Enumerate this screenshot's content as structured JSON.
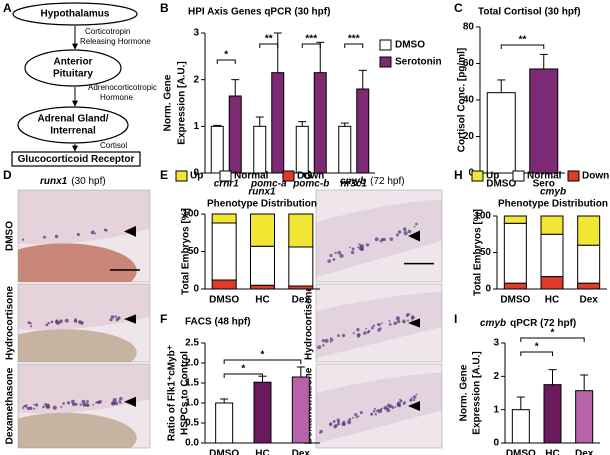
{
  "panel_labels": [
    "A",
    "B",
    "C",
    "D",
    "E",
    "F",
    "G",
    "H",
    "I"
  ],
  "diagram": {
    "nodes": [
      [
        "Hypothalamus"
      ],
      [
        "Anterior",
        "Pituitary"
      ],
      [
        "Adrenal Gland/",
        "Interrenal"
      ],
      [
        "Glucocorticoid Receptor"
      ]
    ],
    "edges": [
      [
        "Corticotropin",
        "Releasing Hormone"
      ],
      [
        "Adrenocorticotropic",
        "Hormone"
      ],
      [
        "Cortisol"
      ]
    ]
  },
  "image_panels": [
    {
      "gene": "runx1",
      "stage": "(30 hpf)",
      "rows": [
        "DMSO",
        "Hydrocortisone",
        "Dexamethasone"
      ]
    },
    {
      "gene": "cmyb",
      "stage": "(72 hpf)",
      "rows": [
        "DMSO",
        "Hydrocortisone",
        "Dexamethasone"
      ]
    }
  ],
  "chart_data": [
    {
      "type": "bar",
      "title": "HPI Axis Genes qPCR (30 hpf)",
      "ylabel": [
        "Norm. Gene",
        "Expression [A.U.]"
      ],
      "categories": [
        "crhr1",
        "pomc-a",
        "pomc-b",
        "nr3c1"
      ],
      "series": [
        {
          "name": "DMSO",
          "color": "#ffffff",
          "values": [
            1,
            1,
            1,
            1
          ],
          "errors": [
            0.02,
            0.2,
            0.1,
            0.07
          ]
        },
        {
          "name": "Serotonin",
          "color": "#7b2a73",
          "values": [
            1.65,
            2.15,
            2.15,
            1.8
          ],
          "errors": [
            0.35,
            0.85,
            0.65,
            0.4
          ]
        }
      ],
      "ylim": [
        0,
        3
      ],
      "yticks": [
        0,
        1,
        2,
        3
      ],
      "annotations": [
        "*",
        "**",
        "***",
        "***"
      ]
    },
    {
      "type": "bar",
      "title": "Total Cortisol (30 hpf)",
      "ylabel": [
        "Cortisol Conc. [pg/ml]"
      ],
      "categories": [
        "DMSO",
        "Sero"
      ],
      "values": [
        44,
        57
      ],
      "errors": [
        7,
        8
      ],
      "colors": [
        "#ffffff",
        "#7b2a73"
      ],
      "ylim": [
        0,
        80
      ],
      "yticks": [
        0,
        20,
        40,
        60,
        80
      ],
      "annotations": [
        "**"
      ]
    },
    {
      "type": "stacked_bar",
      "title_gene": "runx1",
      "title": "Phenotype Distribution",
      "ylabel": [
        "Total Embryos [%]"
      ],
      "categories": [
        "DMSO",
        "HC",
        "Dex"
      ],
      "series": [
        {
          "name": "Up",
          "color": "#f2e635",
          "values": [
            12,
            43,
            44
          ]
        },
        {
          "name": "Normal",
          "color": "#ffffff",
          "values": [
            76,
            52,
            52
          ]
        },
        {
          "name": "Down",
          "color": "#e03a2a",
          "values": [
            12,
            5,
            4
          ]
        }
      ],
      "ylim": [
        0,
        100
      ],
      "yticks": [
        0,
        50,
        100
      ]
    },
    {
      "type": "bar",
      "title": "FACS (48 hpf)",
      "ylabel": [
        "Ratio of Flk1⁺cMyb⁺",
        "HSPCs to Control"
      ],
      "categories": [
        "DMSO",
        "HC",
        "Dex"
      ],
      "values": [
        1.0,
        1.52,
        1.65
      ],
      "errors": [
        0.1,
        0.15,
        0.25
      ],
      "colors": [
        "#ffffff",
        "#6b1a5e",
        "#b763aa"
      ],
      "ylim": [
        0,
        2.5
      ],
      "yticks": [
        {
          "value": 0,
          "label": "0.0"
        },
        {
          "value": 0.5,
          "label": "0.5"
        },
        {
          "value": 1,
          "label": "1.0"
        },
        {
          "value": 1.5,
          "label": "1.5"
        },
        {
          "value": 2,
          "label": "2.0"
        },
        {
          "value": 2.5,
          "label": "2.5"
        }
      ],
      "annotations": [
        "*",
        "*"
      ]
    },
    {
      "type": "stacked_bar",
      "title_gene": "cmyb",
      "title": "Phenotype Distribution",
      "ylabel": [
        "Total Embryos [%]"
      ],
      "categories": [
        "DMSO",
        "HC",
        "Dex"
      ],
      "series": [
        {
          "name": "Up",
          "color": "#f2e635",
          "values": [
            10,
            25,
            40
          ]
        },
        {
          "name": "Normal",
          "color": "#ffffff",
          "values": [
            82,
            58,
            52
          ]
        },
        {
          "name": "Down",
          "color": "#e03a2a",
          "values": [
            8,
            17,
            8
          ]
        }
      ],
      "ylim": [
        0,
        100
      ],
      "yticks": [
        0,
        50,
        100
      ]
    },
    {
      "type": "bar",
      "title_gene": "cmyb",
      "title": "qPCR (72 hpf)",
      "ylabel": [
        "Norm. Gene",
        "Expression [A.U.]"
      ],
      "categories": [
        "DMSO",
        "HC",
        "Dex"
      ],
      "values": [
        1.0,
        1.75,
        1.57
      ],
      "errors": [
        0.38,
        0.45,
        0.47
      ],
      "colors": [
        "#ffffff",
        "#6b1a5e",
        "#b763aa"
      ],
      "ylim": [
        0,
        3
      ],
      "yticks": [
        0,
        1,
        2,
        3
      ],
      "annotations": [
        "*",
        "*"
      ]
    }
  ]
}
